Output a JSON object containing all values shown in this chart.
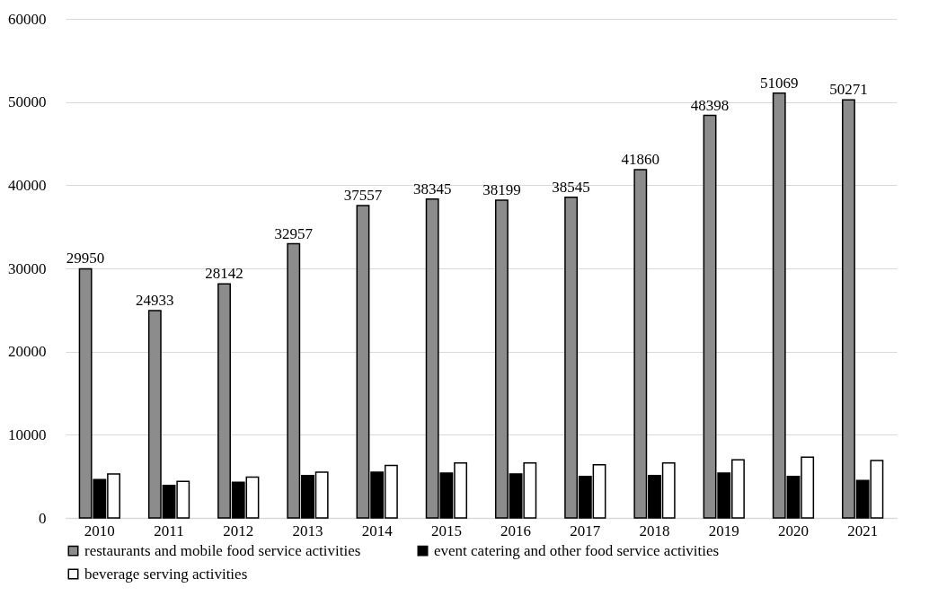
{
  "chart_data": {
    "type": "bar",
    "categories": [
      "2010",
      "2011",
      "2012",
      "2013",
      "2014",
      "2015",
      "2016",
      "2017",
      "2018",
      "2019",
      "2020",
      "2021"
    ],
    "series": [
      {
        "name": "restaurants and mobile food service activities",
        "color": "#8c8c8c",
        "values": [
          29950,
          24933,
          28142,
          32957,
          37557,
          38345,
          38199,
          38545,
          41860,
          48398,
          51069,
          50271
        ],
        "value_labels": [
          "29950",
          "24933",
          "28142",
          "32957",
          "37557",
          "38345",
          "38199",
          "38545",
          "41860",
          "48398",
          "51069",
          "50271"
        ]
      },
      {
        "name": "event catering and other food service activities",
        "color": "#000000",
        "values": [
          4600,
          3900,
          4300,
          5100,
          5500,
          5400,
          5300,
          5000,
          5100,
          5400,
          5000,
          4500
        ]
      },
      {
        "name": "beverage serving activities",
        "color": "#ffffff",
        "values": [
          5300,
          4400,
          4900,
          5500,
          6300,
          6600,
          6600,
          6400,
          6600,
          7000,
          7300,
          6900
        ]
      }
    ],
    "ylim": [
      0,
      60000
    ],
    "yticks": [
      0,
      10000,
      20000,
      30000,
      40000,
      50000,
      60000
    ],
    "grid": "y",
    "legend": "bottom"
  }
}
